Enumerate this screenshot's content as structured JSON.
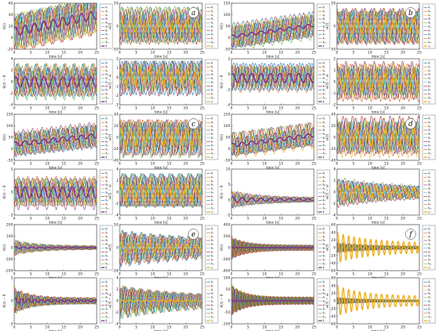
{
  "figure": {
    "panel_tags": [
      "a",
      "b",
      "c",
      "d",
      "e",
      "f"
    ],
    "xlabel": "time [s]",
    "legend_entries": [
      "θ₁",
      "θ₂",
      "θ₃",
      "θ₄",
      "θ₅",
      "θ₆",
      "θ₇",
      "θ₈",
      "θ₉",
      "θ₁₀"
    ],
    "left_legend_last": "θ̄",
    "right_legend_last": "ω̄",
    "series_colors": [
      "#0072bd",
      "#d95319",
      "#edb120",
      "#7e2f8e",
      "#77ac30",
      "#4dbeee",
      "#a2142f",
      "#0072bd",
      "#d95319",
      "#77ac30"
    ],
    "left_main_color": "#7e2f8e",
    "right_main_color": "#edb120"
  },
  "chart_data": [
    {
      "panel": "a",
      "type": "line",
      "ylabel": "θ(t)",
      "xlim": [
        0,
        25
      ],
      "ylim": [
        -20,
        60
      ],
      "yticks": [
        -20,
        0,
        20,
        40,
        60
      ],
      "xticks": [
        0,
        5,
        10,
        15,
        20,
        25
      ],
      "mean": {
        "offset": 10,
        "drift": 1.2,
        "amp": 8,
        "freq": 0.35
      },
      "spread": 35,
      "decay": 0,
      "freq": 0.35
    },
    {
      "panel": "a",
      "type": "line",
      "ylabel": "ω(t)",
      "xlim": [
        0,
        25
      ],
      "ylim": [
        -50,
        50
      ],
      "yticks": [
        -50,
        0,
        50
      ],
      "xticks": [
        0,
        5,
        10,
        15,
        20,
        25
      ],
      "mean": {
        "offset": 0,
        "drift": 0,
        "amp": 12,
        "freq": 0.35
      },
      "spread": 40,
      "decay": 0,
      "freq": 0.35
    },
    {
      "panel": "b",
      "type": "line",
      "ylabel": "θ(t)",
      "xlim": [
        0,
        25
      ],
      "ylim": [
        -50,
        150
      ],
      "yticks": [
        -50,
        0,
        50,
        100,
        150
      ],
      "xticks": [
        0,
        5,
        10,
        15,
        20,
        25
      ],
      "mean": {
        "offset": 5,
        "drift": 2,
        "amp": 6,
        "freq": 0.35
      },
      "spread": 60,
      "decay": 0,
      "freq": 0.35
    },
    {
      "panel": "b",
      "type": "line",
      "ylabel": "ω(t)",
      "xlim": [
        0,
        25
      ],
      "ylim": [
        -50,
        50
      ],
      "yticks": [
        -50,
        0,
        50
      ],
      "xticks": [
        0,
        5,
        10,
        15,
        20,
        25
      ],
      "mean": {
        "offset": 0,
        "drift": 0,
        "amp": 15,
        "freq": 0.35
      },
      "spread": 40,
      "decay": 0,
      "freq": 0.35
    },
    {
      "panel": "a",
      "type": "line",
      "ylabel": "θ(t) − θ̄",
      "xlim": [
        0,
        25
      ],
      "ylim": [
        -4,
        4
      ],
      "yticks": [
        -4,
        -2,
        0,
        2,
        4
      ],
      "xticks": [
        0,
        5,
        10,
        15,
        20,
        25
      ],
      "mean": {
        "offset": 0,
        "drift": 0,
        "amp": 0.9,
        "freq": 0.35
      },
      "spread": 3,
      "decay": 0,
      "freq": 0.35
    },
    {
      "panel": "a",
      "type": "line",
      "ylabel": "ω(t) − ω̄",
      "xlim": [
        0,
        25
      ],
      "ylim": [
        -3,
        2
      ],
      "yticks": [
        -3,
        -2,
        -1,
        0,
        1,
        2
      ],
      "xticks": [
        0,
        5,
        10,
        15,
        20,
        25
      ],
      "mean": {
        "offset": 0,
        "drift": 0,
        "amp": 0.8,
        "freq": 0.35
      },
      "spread": 2,
      "decay": 0,
      "freq": 0.35
    },
    {
      "panel": "b",
      "type": "line",
      "ylabel": "θ(t) − θ̄",
      "xlim": [
        0,
        25
      ],
      "ylim": [
        -4,
        2
      ],
      "yticks": [
        -4,
        -2,
        0,
        2
      ],
      "xticks": [
        0,
        5,
        10,
        15,
        20,
        25
      ],
      "mean": {
        "offset": -0.5,
        "drift": 0,
        "amp": 0.6,
        "freq": 0.35
      },
      "spread": 2,
      "decay": 0,
      "freq": 0.35
    },
    {
      "panel": "b",
      "type": "line",
      "ylabel": "ω(t) − ω̄",
      "xlim": [
        0,
        25
      ],
      "ylim": [
        -2,
        2
      ],
      "yticks": [
        -2,
        -1,
        0,
        1,
        2
      ],
      "xticks": [
        0,
        5,
        10,
        15,
        20,
        25
      ],
      "mean": {
        "offset": 0,
        "drift": 0,
        "amp": 0.7,
        "freq": 0.35
      },
      "spread": 1.6,
      "decay": 0,
      "freq": 0.35
    },
    {
      "panel": "c",
      "type": "line",
      "ylabel": "θ(t)",
      "xlim": [
        0,
        25
      ],
      "ylim": [
        -50,
        150
      ],
      "yticks": [
        -50,
        0,
        50,
        100,
        150
      ],
      "xticks": [
        0,
        5,
        10,
        15,
        20,
        25
      ],
      "mean": {
        "offset": 20,
        "drift": 1.5,
        "amp": 10,
        "freq": 0.35
      },
      "spread": 55,
      "decay": 0,
      "freq": 0.35
    },
    {
      "panel": "c",
      "type": "line",
      "ylabel": "ω(t)",
      "xlim": [
        0,
        25
      ],
      "ylim": [
        -40,
        40
      ],
      "yticks": [
        -40,
        -20,
        0,
        20,
        40
      ],
      "xticks": [
        0,
        5,
        10,
        15,
        20,
        25
      ],
      "mean": {
        "offset": 0,
        "drift": 0,
        "amp": 14,
        "freq": 0.35
      },
      "spread": 35,
      "decay": 0,
      "freq": 0.35
    },
    {
      "panel": "d",
      "type": "line",
      "ylabel": "θ(t)",
      "xlim": [
        0,
        25
      ],
      "ylim": [
        -50,
        150
      ],
      "yticks": [
        -50,
        0,
        50,
        100,
        150
      ],
      "xticks": [
        0,
        5,
        10,
        15,
        20,
        25
      ],
      "mean": {
        "offset": 15,
        "drift": 1.8,
        "amp": 8,
        "freq": 0.35
      },
      "spread": 55,
      "decay": 0,
      "freq": 0.35
    },
    {
      "panel": "d",
      "type": "line",
      "ylabel": "ω(t)",
      "xlim": [
        0,
        25
      ],
      "ylim": [
        -40,
        40
      ],
      "yticks": [
        -40,
        -20,
        0,
        20,
        40
      ],
      "xticks": [
        0,
        5,
        10,
        15,
        20,
        25
      ],
      "mean": {
        "offset": 0,
        "drift": 0,
        "amp": 14,
        "freq": 0.35
      },
      "spread": 35,
      "decay": 0,
      "freq": 0.35
    },
    {
      "panel": "c",
      "type": "line",
      "ylabel": "θ(t) − θ̄",
      "xlim": [
        0,
        25
      ],
      "ylim": [
        -5,
        5
      ],
      "yticks": [
        -5,
        0,
        5
      ],
      "xticks": [
        0,
        5,
        10,
        15,
        20,
        25
      ],
      "mean": {
        "offset": 0,
        "drift": 0,
        "amp": 1.2,
        "freq": 0.35
      },
      "spread": 3.5,
      "decay": 0,
      "freq": 0.35
    },
    {
      "panel": "c",
      "type": "line",
      "ylabel": "ω(t) − ω̄",
      "xlim": [
        0,
        25
      ],
      "ylim": [
        -4,
        4
      ],
      "yticks": [
        -4,
        -2,
        0,
        2,
        4
      ],
      "xticks": [
        0,
        5,
        10,
        15,
        20,
        25
      ],
      "mean": {
        "offset": 0,
        "drift": 0,
        "amp": 1.4,
        "freq": 0.35
      },
      "spread": 3,
      "decay": 0,
      "freq": 0.35
    },
    {
      "panel": "d",
      "type": "line",
      "ylabel": "θ(t) − θ̄",
      "xlim": [
        0,
        25
      ],
      "ylim": [
        -5,
        10
      ],
      "yticks": [
        -5,
        0,
        5,
        10
      ],
      "xticks": [
        0,
        5,
        10,
        15,
        20,
        25
      ],
      "mean": {
        "offset": 0,
        "drift": 0,
        "amp": 1.0,
        "freq": 0.35
      },
      "spread": 3,
      "decay": 0.12,
      "freq": 0.35
    },
    {
      "panel": "d",
      "type": "line",
      "ylabel": "ω(t) − ω̄",
      "xlim": [
        0,
        25
      ],
      "ylim": [
        -4,
        4
      ],
      "yticks": [
        -4,
        -2,
        0,
        2,
        4
      ],
      "xticks": [
        0,
        5,
        10,
        15,
        20,
        25
      ],
      "mean": {
        "offset": 0,
        "drift": 0,
        "amp": 1.3,
        "freq": 0.35
      },
      "spread": 2.6,
      "decay": 0.05,
      "freq": 0.35
    },
    {
      "panel": "e",
      "type": "line",
      "ylabel": "θ(t)",
      "xlim": [
        0,
        25
      ],
      "ylim": [
        -200,
        200
      ],
      "yticks": [
        -200,
        -100,
        0,
        100,
        200
      ],
      "xticks": [
        0,
        5,
        10,
        15,
        20,
        25
      ],
      "mean": {
        "offset": 0,
        "drift": 0,
        "amp": 10,
        "freq": 0.4
      },
      "spread": 70,
      "decay": 0.15,
      "freq": 0.4
    },
    {
      "panel": "e",
      "type": "line",
      "ylabel": "ω(t)",
      "xlim": [
        0,
        25
      ],
      "ylim": [
        -50,
        50
      ],
      "yticks": [
        -50,
        0,
        50
      ],
      "xticks": [
        0,
        5,
        10,
        15,
        20,
        25
      ],
      "mean": {
        "offset": 0,
        "drift": 0,
        "amp": 10,
        "freq": 0.35
      },
      "spread": 40,
      "decay": 0.03,
      "freq": 0.35
    },
    {
      "panel": "f",
      "type": "line",
      "ylabel": "θ(t)",
      "xlim": [
        0,
        25
      ],
      "ylim": [
        -400,
        400
      ],
      "yticks": [
        -400,
        -200,
        0,
        200,
        400
      ],
      "xticks": [
        0,
        5,
        10,
        15,
        20,
        25
      ],
      "mean": {
        "offset": 0,
        "drift": 0,
        "amp": 10,
        "freq": 0.8
      },
      "spread": 200,
      "decay": 0.22,
      "freq": 0.8
    },
    {
      "panel": "f",
      "type": "line",
      "ylabel": "ω(t)",
      "xlim": [
        0,
        25
      ],
      "ylim": [
        -60,
        60
      ],
      "yticks": [
        -60,
        -40,
        -20,
        0,
        20,
        40,
        60
      ],
      "xticks": [
        0,
        5,
        10,
        15,
        20,
        25
      ],
      "mean": {
        "offset": 0,
        "drift": 0,
        "amp": 40,
        "freq": 0.6
      },
      "spread": 15,
      "decay": 0.1,
      "freq": 0.6
    },
    {
      "panel": "e",
      "type": "line",
      "ylabel": "θ(t) − θ̄",
      "xlim": [
        0,
        25
      ],
      "ylim": [
        -5,
        5
      ],
      "yticks": [
        -5,
        0,
        5
      ],
      "xticks": [
        0,
        5,
        10,
        15,
        20,
        25
      ],
      "mean": {
        "offset": 0,
        "drift": 0,
        "amp": 0.6,
        "freq": 0.5
      },
      "spread": 3,
      "decay": 0.2,
      "freq": 0.5
    },
    {
      "panel": "e",
      "type": "line",
      "ylabel": "ω(t) − ω̄",
      "xlim": [
        0,
        25
      ],
      "ylim": [
        -4,
        4
      ],
      "yticks": [
        -4,
        -2,
        0,
        2,
        4
      ],
      "xticks": [
        0,
        5,
        10,
        15,
        20,
        25
      ],
      "mean": {
        "offset": 0,
        "drift": 0,
        "amp": 0.2,
        "freq": 0.4
      },
      "spread": 3,
      "decay": 0.05,
      "freq": 0.4
    },
    {
      "panel": "f",
      "type": "line",
      "ylabel": "θ(t) − θ̄",
      "xlim": [
        0,
        25
      ],
      "ylim": [
        -100,
        100
      ],
      "yticks": [
        -100,
        -50,
        0,
        50,
        100
      ],
      "xticks": [
        0,
        5,
        10,
        15,
        20,
        25
      ],
      "mean": {
        "offset": 0,
        "drift": 0,
        "amp": 4,
        "freq": 0.9
      },
      "spread": 70,
      "decay": 0.25,
      "freq": 0.9
    },
    {
      "panel": "f",
      "type": "line",
      "ylabel": "ω(t) − ω̄",
      "xlim": [
        0,
        25
      ],
      "ylim": [
        -60,
        60
      ],
      "yticks": [
        -60,
        -40,
        -20,
        0,
        20,
        40,
        60
      ],
      "xticks": [
        0,
        5,
        10,
        15,
        20,
        25
      ],
      "mean": {
        "offset": 0,
        "drift": 0,
        "amp": 40,
        "freq": 0.6
      },
      "spread": 10,
      "decay": 0.12,
      "freq": 0.6
    }
  ]
}
